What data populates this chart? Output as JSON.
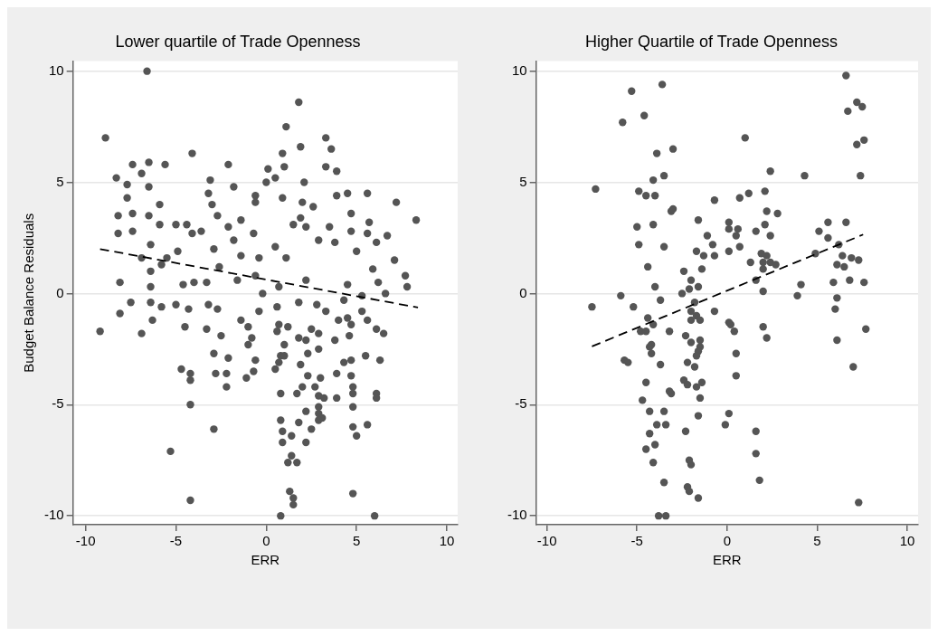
{
  "chart_data": [
    {
      "type": "scatter",
      "title": "Lower quartile of Trade Openness",
      "xlabel": "ERR",
      "ylabel": "Budget Balance Residuals",
      "xlim": [
        -10.7,
        10.6
      ],
      "ylim": [
        -10.4,
        10.45
      ],
      "xticks": [
        -10,
        -5,
        0,
        5,
        10
      ],
      "yticks": [
        -10,
        -5,
        0,
        5,
        10
      ],
      "grid": "y",
      "legend": false,
      "marker": "circle",
      "series": [
        {
          "type": "scatter",
          "color": "#555555",
          "x": [
            -6.6,
            -8.9,
            1.8,
            1.1,
            3.3,
            1.9,
            3.6,
            -4.1,
            0.9,
            -6.5,
            -5.6,
            -7.4,
            -2.1,
            0.1,
            1.0,
            3.3,
            3.9,
            -8.3,
            -6.9,
            0.5,
            -3.1,
            0.0,
            2.1,
            -7.7,
            -6.5,
            -1.8,
            4.5,
            5.6,
            -3.2,
            -0.6,
            -7.7,
            3.9,
            7.2,
            -5.9,
            0.9,
            2.0,
            -3.0,
            -0.6,
            2.6,
            -8.2,
            -7.4,
            -2.7,
            4.7,
            8.3,
            1.9,
            -6.5,
            -5.9,
            -5.0,
            -4.4,
            -1.4,
            5.7,
            -2.1,
            1.5,
            2.2,
            3.5,
            -8.2,
            -7.4,
            6.7,
            -4.1,
            -3.6,
            -0.7,
            4.7,
            5.6,
            2.9,
            -6.4,
            -1.8,
            3.8,
            6.1,
            -4.9,
            -2.9,
            0.5,
            5.0,
            -6.9,
            -5.5,
            -1.4,
            7.1,
            1.1,
            -5.8,
            -6.4,
            -2.6,
            -0.4,
            5.9,
            7.7,
            -8.1,
            -4.6,
            -4.0,
            -3.3,
            6.2,
            4.5,
            6.6,
            7.8,
            -6.4,
            -0.6,
            2.2,
            -1.6,
            0.7,
            -7.5,
            -9.2,
            -6.9,
            -8.1,
            -6.4,
            -5.8,
            -5.0,
            -6.3,
            -4.5,
            -4.3,
            -3.2,
            -2.7,
            -3.3,
            -2.5,
            -2.9,
            -2.1,
            -4.7,
            -4.2,
            -4.2,
            -2.8,
            -2.2,
            -2.2,
            -4.2,
            -2.9,
            -5.3,
            -4.2,
            -1.4,
            -1.0,
            -0.8,
            -1.0,
            -0.6,
            -0.7,
            -1.1,
            -0.2,
            -0.4,
            0.6,
            0.7,
            1.2,
            0.6,
            1.0,
            0.8,
            1.0,
            0.7,
            0.5,
            0.8,
            0.8,
            0.9,
            1.4,
            0.9,
            1.4,
            1.2,
            1.7,
            1.3,
            1.5,
            1.5,
            0.8,
            1.8,
            1.8,
            2.2,
            2.3,
            1.9,
            2.0,
            1.7,
            2.2,
            1.8,
            2.5,
            2.2,
            2.3,
            2.5,
            2.9,
            2.8,
            2.9,
            3.0,
            2.7,
            2.9,
            3.2,
            2.9,
            2.9,
            3.1,
            2.9,
            3.3,
            3.8,
            3.9,
            3.9,
            4.0,
            4.5,
            4.7,
            4.6,
            4.3,
            5.3,
            5.3,
            5.6,
            6.1,
            6.5,
            5.5,
            6.3,
            4.3,
            4.7,
            4.7,
            4.8,
            4.8,
            4.8,
            6.1,
            6.1,
            4.8,
            5.0,
            5.6,
            4.8,
            6.0
          ],
          "values": [
            10.0,
            7.0,
            8.6,
            7.5,
            7.0,
            6.6,
            6.5,
            6.3,
            6.3,
            5.9,
            5.8,
            5.8,
            5.8,
            5.6,
            5.7,
            5.7,
            5.5,
            5.2,
            5.4,
            5.2,
            5.1,
            5.0,
            5.0,
            4.9,
            4.8,
            4.8,
            4.5,
            4.5,
            4.5,
            4.4,
            4.3,
            4.4,
            4.1,
            4.0,
            4.3,
            4.1,
            4.0,
            4.1,
            3.9,
            3.5,
            3.6,
            3.5,
            3.6,
            3.3,
            3.4,
            3.5,
            3.1,
            3.1,
            3.1,
            3.3,
            3.2,
            3.0,
            3.1,
            3.0,
            3.0,
            2.7,
            2.8,
            2.6,
            2.7,
            2.8,
            2.7,
            2.8,
            2.7,
            2.4,
            2.2,
            2.4,
            2.3,
            2.3,
            1.9,
            2.0,
            2.1,
            1.9,
            1.6,
            1.6,
            1.7,
            1.5,
            1.6,
            1.3,
            1.0,
            1.2,
            1.6,
            1.1,
            0.8,
            0.5,
            0.4,
            0.5,
            0.5,
            0.5,
            0.4,
            0.0,
            0.3,
            0.3,
            0.8,
            0.6,
            0.6,
            0.3,
            -0.4,
            -1.7,
            -1.8,
            -0.9,
            -0.4,
            -0.6,
            -0.5,
            -1.2,
            -1.5,
            -0.7,
            -0.5,
            -0.7,
            -1.6,
            -1.9,
            -2.7,
            -2.9,
            -3.4,
            -3.6,
            -3.9,
            -3.6,
            -3.6,
            -4.2,
            -5.0,
            -6.1,
            -7.1,
            -9.3,
            -1.2,
            -1.5,
            -2.0,
            -2.3,
            -3.0,
            -3.5,
            -3.8,
            0.0,
            -0.8,
            -0.6,
            -1.4,
            -1.5,
            -1.7,
            -2.3,
            -2.8,
            -2.8,
            -3.1,
            -3.4,
            -4.5,
            -5.7,
            -6.2,
            -6.4,
            -6.7,
            -7.3,
            -7.6,
            -7.6,
            -8.9,
            -9.2,
            -9.5,
            -10.0,
            -0.4,
            -2.0,
            -2.1,
            -2.7,
            -3.2,
            -4.2,
            -4.5,
            -5.3,
            -5.8,
            -6.1,
            -6.7,
            -3.7,
            -1.6,
            -1.8,
            -0.5,
            -2.5,
            -3.8,
            -4.2,
            -4.6,
            -4.7,
            -5.1,
            -5.4,
            -5.6,
            -5.7,
            -0.8,
            -2.1,
            -3.6,
            -4.7,
            -1.2,
            -1.1,
            -1.4,
            -1.9,
            -0.3,
            -0.1,
            -0.8,
            -1.2,
            -1.6,
            -1.8,
            -2.8,
            -3.0,
            -3.1,
            -3.0,
            -3.7,
            -4.2,
            -4.5,
            -5.1,
            -4.5,
            -4.7,
            -6.0,
            -6.4,
            -5.9,
            -9.0,
            -10.0
          ]
        },
        {
          "type": "line",
          "color": "#000000",
          "line_style": "dashed",
          "marker": "none",
          "x": [
            -9.2,
            8.4
          ],
          "values": [
            2.0,
            -0.63
          ]
        }
      ]
    },
    {
      "type": "scatter",
      "title": "Higher Quartile of Trade Openness",
      "xlabel": "ERR",
      "xlim": [
        -10.6,
        10.6
      ],
      "ylim": [
        -10.4,
        10.45
      ],
      "xticks": [
        -10,
        -5,
        0,
        5,
        10
      ],
      "yticks": [
        -10,
        -5,
        0,
        5,
        10
      ],
      "grid": "y",
      "legend": false,
      "marker": "circle",
      "series": [
        {
          "type": "scatter",
          "color": "#555555",
          "x": [
            6.6,
            -5.3,
            -3.6,
            -5.8,
            -4.6,
            7.2,
            6.7,
            7.5,
            1.0,
            7.2,
            7.6,
            -3.9,
            -3.0,
            2.4,
            4.3,
            7.4,
            -4.1,
            -3.5,
            -7.3,
            -4.9,
            -4.5,
            -4.0,
            0.7,
            1.2,
            2.1,
            -0.7,
            -3.1,
            -3.0,
            2.2,
            2.8,
            -1.6,
            0.1,
            2.1,
            5.6,
            6.6,
            -5.0,
            -4.1,
            0.6,
            0.1,
            1.6,
            5.1,
            -1.1,
            0.5,
            2.4,
            5.6,
            -4.9,
            -3.5,
            -0.8,
            0.7,
            6.2,
            -1.7,
            0.1,
            -0.7,
            -1.3,
            1.9,
            4.9,
            2.2,
            6.4,
            1.3,
            2.0,
            2.4,
            6.9,
            7.3,
            -4.4,
            6.1,
            2.7,
            6.5,
            -1.4,
            2.0,
            -2.4,
            -2.0,
            1.6,
            6.8,
            -4.0,
            -1.6,
            4.1,
            5.9,
            7.6,
            2.0,
            -2.1,
            -2.5,
            -5.9,
            -3.7,
            -7.5,
            -5.2,
            -1.8,
            -0.7,
            -2.0,
            -1.7,
            -4.4,
            -4.1,
            -2.0,
            -1.5,
            3.9,
            6.1,
            6.0,
            0.1,
            0.2,
            0.4,
            2.0,
            2.2,
            7.7,
            6.1,
            -4.8,
            -4.5,
            -3.2,
            -2.3,
            -2.0,
            -1.5,
            -4.2,
            -4.3,
            -4.2,
            -1.5,
            -1.6,
            -1.7,
            0.5,
            -5.7,
            -5.5,
            -3.7,
            -2.2,
            -1.8,
            7.0,
            0.5,
            -4.5,
            -2.4,
            -2.2,
            -1.7,
            -1.4,
            -3.2,
            -3.1,
            -1.5,
            -4.7,
            -4.3,
            -3.5,
            -1.6,
            0.1,
            -0.1,
            -3.9,
            -3.4,
            -4.3,
            -2.3,
            1.6,
            -4.0,
            -4.5,
            1.6,
            -2.1,
            -2.0,
            -4.1,
            -3.5,
            1.8,
            -2.2,
            -2.1,
            -1.6,
            7.3,
            -3.8,
            -3.4
          ],
          "values": [
            9.8,
            9.1,
            9.4,
            7.7,
            8.0,
            8.6,
            8.2,
            8.4,
            7.0,
            6.7,
            6.9,
            6.3,
            6.5,
            5.5,
            5.3,
            5.3,
            5.1,
            5.3,
            4.7,
            4.6,
            4.4,
            4.4,
            4.3,
            4.5,
            4.6,
            4.2,
            3.7,
            3.8,
            3.7,
            3.6,
            3.3,
            3.2,
            3.1,
            3.2,
            3.2,
            3.0,
            3.1,
            2.9,
            2.9,
            2.8,
            2.8,
            2.6,
            2.6,
            2.6,
            2.5,
            2.2,
            2.1,
            2.2,
            2.1,
            2.2,
            1.9,
            1.9,
            1.7,
            1.7,
            1.8,
            1.8,
            1.7,
            1.7,
            1.4,
            1.4,
            1.4,
            1.6,
            1.5,
            1.2,
            1.3,
            1.3,
            1.2,
            1.1,
            1.1,
            1.0,
            0.6,
            0.6,
            0.6,
            0.3,
            0.3,
            0.4,
            0.5,
            0.5,
            0.1,
            0.2,
            0.0,
            -0.1,
            -0.3,
            -0.6,
            -0.6,
            -0.4,
            -0.8,
            -0.8,
            -1.0,
            -1.1,
            -1.4,
            -1.2,
            -1.2,
            -0.1,
            -0.2,
            -0.7,
            -1.3,
            -1.4,
            -1.7,
            -1.5,
            -2.0,
            -1.6,
            -2.1,
            -1.7,
            -1.7,
            -1.7,
            -1.9,
            -2.2,
            -2.1,
            -2.3,
            -2.4,
            -2.7,
            -2.4,
            -2.6,
            -2.8,
            -2.7,
            -3.0,
            -3.1,
            -3.2,
            -3.1,
            -3.3,
            -3.3,
            -3.7,
            -4.0,
            -3.9,
            -4.1,
            -4.2,
            -4.0,
            -4.4,
            -4.5,
            -4.7,
            -4.8,
            -5.3,
            -5.3,
            -5.5,
            -5.4,
            -5.9,
            -5.9,
            -5.9,
            -6.3,
            -6.2,
            -6.2,
            -6.8,
            -7.0,
            -7.2,
            -7.5,
            -7.7,
            -7.6,
            -8.5,
            -8.4,
            -8.7,
            -8.9,
            -9.2,
            -9.4,
            -10.0,
            -10.0
          ]
        },
        {
          "type": "line",
          "color": "#000000",
          "line_style": "dashed",
          "marker": "none",
          "x": [
            -7.5,
            7.55
          ],
          "values": [
            -2.38,
            2.65
          ]
        }
      ]
    }
  ]
}
